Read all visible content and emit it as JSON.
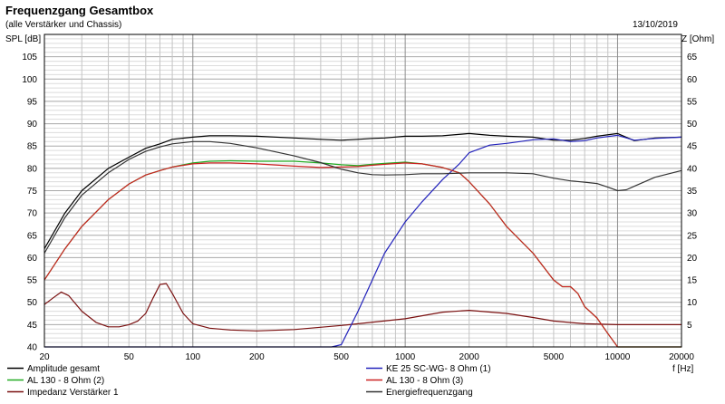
{
  "header": {
    "title": "Frequenzgang Gesamtbox",
    "subtitle": "(alle Verstärker und Chassis)",
    "date": "13/10/2019"
  },
  "chart_data": {
    "type": "line",
    "title": "Frequenzgang Gesamtbox",
    "subtitle": "(alle Verstärker und Chassis)",
    "xlabel": "f [Hz]",
    "ylabel": "SPL [dB]",
    "y2label": "Z [Ohm]",
    "xscale": "log",
    "xlim": [
      20,
      20000
    ],
    "ylim": [
      40,
      110
    ],
    "y2lim": [
      0,
      70
    ],
    "grid": true,
    "legend_position": "bottom",
    "x_tick_labels": [
      "20",
      "50",
      "100",
      "200",
      "500",
      "1000",
      "2000",
      "5000",
      "10000",
      "20000"
    ],
    "y_tick_labels": [
      "40",
      "45",
      "50",
      "55",
      "60",
      "65",
      "70",
      "75",
      "80",
      "85",
      "90",
      "95",
      "100",
      "105"
    ],
    "y2_tick_labels": [
      "5",
      "10",
      "15",
      "20",
      "25",
      "30",
      "35",
      "40",
      "45",
      "50",
      "55",
      "60",
      "65"
    ],
    "series": [
      {
        "name": "Amplitude gesamt",
        "color": "#000000",
        "axis": "left",
        "x": [
          20,
          25,
          30,
          40,
          50,
          60,
          70,
          80,
          100,
          120,
          150,
          200,
          300,
          400,
          500,
          600,
          700,
          800,
          1000,
          1200,
          1500,
          2000,
          2500,
          3000,
          4000,
          5000,
          6000,
          7000,
          8000,
          10000,
          12000,
          15000,
          20000
        ],
        "y": [
          62,
          70,
          75,
          80,
          82.5,
          84.5,
          85.5,
          86.5,
          87,
          87.3,
          87.3,
          87.2,
          86.8,
          86.5,
          86.3,
          86.5,
          86.7,
          86.8,
          87.2,
          87.2,
          87.3,
          87.8,
          87.4,
          87.2,
          87,
          86.3,
          86.3,
          86.7,
          87.2,
          87.8,
          86.2,
          86.8,
          87
        ]
      },
      {
        "name": "AL 130 - 8 Ohm (2)",
        "color": "#22aa22",
        "axis": "left",
        "x": [
          20,
          25,
          30,
          40,
          50,
          60,
          70,
          80,
          100,
          120,
          150,
          200,
          300,
          400,
          500,
          600,
          700,
          800,
          1000,
          1200,
          1500,
          1800,
          2000,
          2500,
          3000,
          4000,
          5000,
          5500,
          6000,
          6500,
          7000,
          8000,
          9000,
          10000,
          12000,
          15000,
          20000
        ],
        "y": [
          55,
          62,
          67,
          73,
          76.5,
          78.5,
          79.5,
          80.3,
          81.2,
          81.6,
          81.7,
          81.6,
          81.6,
          81.2,
          80.8,
          80.6,
          80.9,
          81.1,
          81.4,
          81,
          80.2,
          79,
          77,
          72,
          67,
          61,
          55,
          53.5,
          53.5,
          52,
          49,
          46.5,
          43,
          40,
          40,
          40,
          40
        ]
      },
      {
        "name": "Impedanz Verstärker 1",
        "color": "#7a1010",
        "axis": "right",
        "x": [
          20,
          22,
          24,
          26,
          30,
          35,
          40,
          45,
          50,
          55,
          60,
          65,
          70,
          75,
          80,
          90,
          100,
          120,
          150,
          200,
          300,
          500,
          1000,
          1500,
          2000,
          3000,
          4000,
          5000,
          7000,
          10000,
          20000
        ],
        "y": [
          9.5,
          11,
          12.3,
          11.5,
          8,
          5.5,
          4.5,
          4.5,
          5,
          5.8,
          7.5,
          11,
          14,
          14.2,
          12,
          7.5,
          5.2,
          4.2,
          3.8,
          3.6,
          3.9,
          4.8,
          6.3,
          7.8,
          8.2,
          7.5,
          6.6,
          5.8,
          5.2,
          5,
          5
        ]
      },
      {
        "name": "KE 25 SC-WG- 8 Ohm   (1)",
        "color": "#2222bb",
        "axis": "left",
        "x": [
          20,
          100,
          300,
          450,
          500,
          600,
          700,
          800,
          1000,
          1200,
          1500,
          1800,
          2000,
          2500,
          3000,
          4000,
          5000,
          6000,
          7000,
          8000,
          10000,
          12000,
          15000,
          20000
        ],
        "y": [
          40,
          40,
          40,
          40,
          40.5,
          48,
          55,
          61,
          68,
          72.5,
          77.5,
          81,
          83.5,
          85.2,
          85.6,
          86.4,
          86.6,
          86,
          86.2,
          86.8,
          87.4,
          86.3,
          86.7,
          87
        ]
      },
      {
        "name": "AL 130 - 8 Ohm (3)",
        "color": "#cc2222",
        "axis": "left",
        "x": [
          20,
          25,
          30,
          40,
          50,
          60,
          70,
          80,
          100,
          120,
          150,
          200,
          300,
          400,
          500,
          600,
          700,
          800,
          1000,
          1200,
          1500,
          1800,
          2000,
          2500,
          3000,
          4000,
          5000,
          5500,
          6000,
          6500,
          7000,
          8000,
          9000,
          10000,
          12000,
          15000,
          20000
        ],
        "y": [
          55,
          62,
          67,
          73,
          76.5,
          78.5,
          79.5,
          80.3,
          81,
          81.2,
          81.2,
          81,
          80.5,
          80.2,
          80.3,
          80.4,
          80.7,
          80.9,
          81.2,
          81,
          80.2,
          79,
          77,
          72,
          67,
          61,
          55,
          53.5,
          53.5,
          52,
          49,
          46.5,
          43,
          40,
          40,
          40,
          40
        ]
      },
      {
        "name": "Energiefrequenzgang",
        "color": "#333333",
        "axis": "left",
        "x": [
          20,
          25,
          30,
          40,
          50,
          60,
          70,
          80,
          100,
          120,
          150,
          200,
          300,
          400,
          500,
          600,
          700,
          800,
          1000,
          1200,
          1500,
          2000,
          2500,
          3000,
          4000,
          5000,
          6000,
          7000,
          8000,
          9000,
          10000,
          11000,
          12000,
          15000,
          20000
        ],
        "y": [
          61,
          69,
          74,
          79,
          82,
          83.8,
          84.8,
          85.5,
          86,
          86,
          85.6,
          84.6,
          82.8,
          81.3,
          79.8,
          79,
          78.6,
          78.5,
          78.6,
          78.8,
          78.8,
          79,
          79,
          79,
          78.8,
          77.8,
          77.2,
          76.9,
          76.6,
          75.8,
          75,
          75.2,
          76,
          78,
          79.5
        ]
      }
    ]
  }
}
